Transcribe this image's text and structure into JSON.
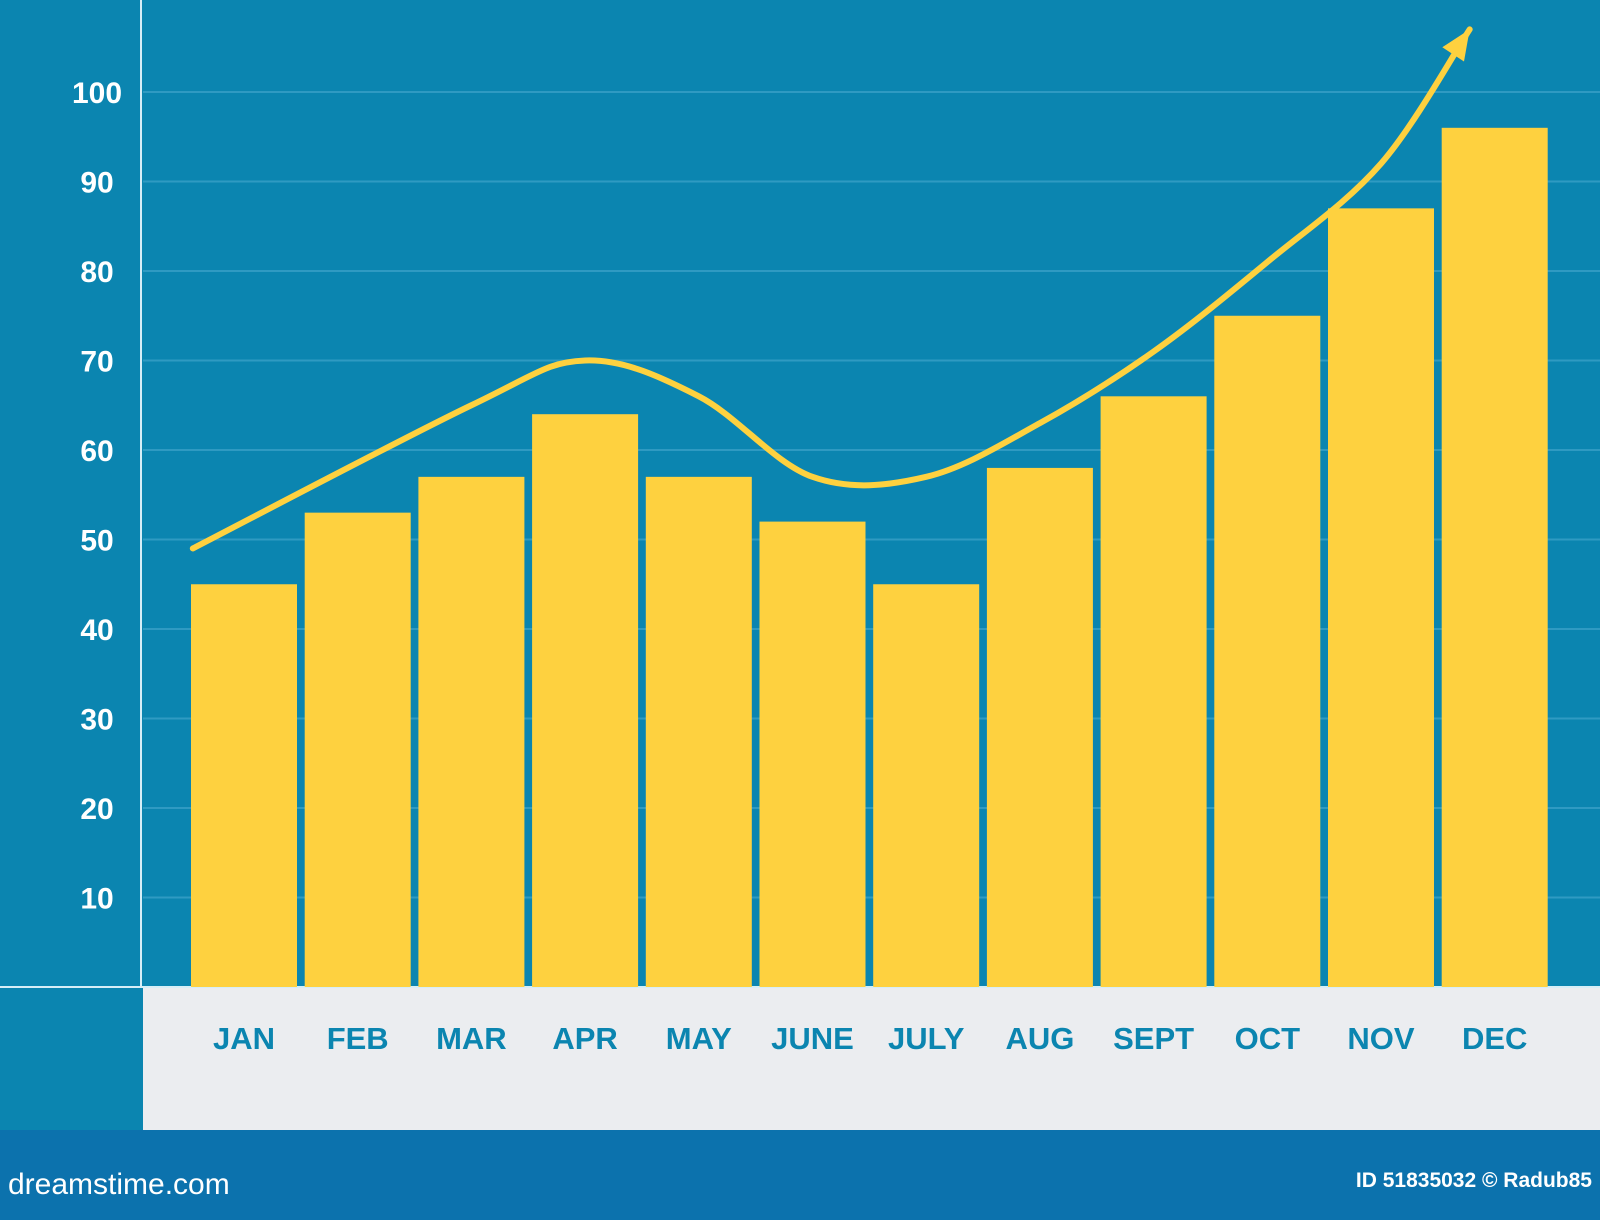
{
  "chart_data": {
    "type": "bar",
    "categories": [
      "JAN",
      "FEB",
      "MAR",
      "APR",
      "MAY",
      "JUNE",
      "JULY",
      "AUG",
      "SEPT",
      "OCT",
      "NOV",
      "DEC"
    ],
    "values": [
      45,
      53,
      57,
      64,
      57,
      52,
      45,
      58,
      66,
      75,
      87,
      96
    ],
    "trend_line": {
      "x": [
        "JAN",
        "MAR",
        "APR",
        "MAY",
        "JUNE",
        "JULY",
        "AUG",
        "SEPT",
        "OCT",
        "NOV",
        "DEC"
      ],
      "values": [
        49,
        65,
        70,
        66,
        57,
        57,
        63,
        71,
        81,
        92,
        107
      ],
      "ends_with_arrow": true
    },
    "yticks": [
      10,
      20,
      30,
      40,
      50,
      60,
      70,
      80,
      90,
      100
    ],
    "ylim": [
      0,
      110
    ],
    "grid": true,
    "title": "",
    "xlabel": "",
    "ylabel": ""
  },
  "footer": {
    "brand": "dreamstime.com",
    "credit": "ID 51835032 © Radub85"
  },
  "colors": {
    "background": "#0b85b0",
    "bar": "#fed13f",
    "trend": "#fed13f",
    "gridline": "#2f9ac2",
    "label_band": "#ebedf0",
    "footer": "#0c72ad"
  }
}
